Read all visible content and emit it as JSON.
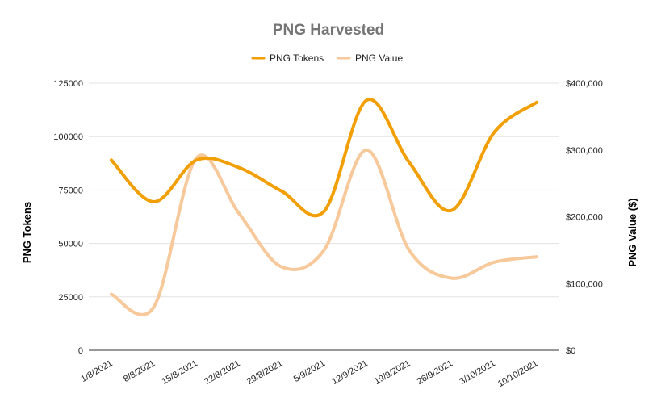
{
  "chart_data": {
    "type": "line",
    "title": "PNG Harvested",
    "categories": [
      "1/8/2021",
      "8/8/2021",
      "15/8/2021",
      "22/8/2021",
      "29/8/2021",
      "5/9/2021",
      "12/9/2021",
      "19/9/2021",
      "26/9/2021",
      "3/10/2021",
      "10/10/2021"
    ],
    "series": [
      {
        "name": "PNG Tokens",
        "axis": "left",
        "color": "#f29f05",
        "values": [
          89000,
          69500,
          89000,
          85500,
          74500,
          65000,
          117000,
          88000,
          65500,
          102000,
          116000
        ]
      },
      {
        "name": "PNG Value",
        "axis": "right",
        "color": "#f7c99a",
        "values": [
          84000,
          65000,
          288000,
          205000,
          125000,
          150000,
          300000,
          150000,
          108000,
          132000,
          140000
        ]
      }
    ],
    "ylabel_left": "PNG Tokens",
    "ylabel_right": "PNG Value ($)",
    "ylim_left": [
      0,
      125000
    ],
    "ylim_right": [
      0,
      400000
    ],
    "yticks_left": [
      "0",
      "25000",
      "50000",
      "75000",
      "100000",
      "125000"
    ],
    "yticks_right": [
      "$0",
      "$100,000",
      "$200,000",
      "$300,000",
      "$400,000"
    ],
    "legend": "top",
    "grid": true,
    "smooth": true
  }
}
